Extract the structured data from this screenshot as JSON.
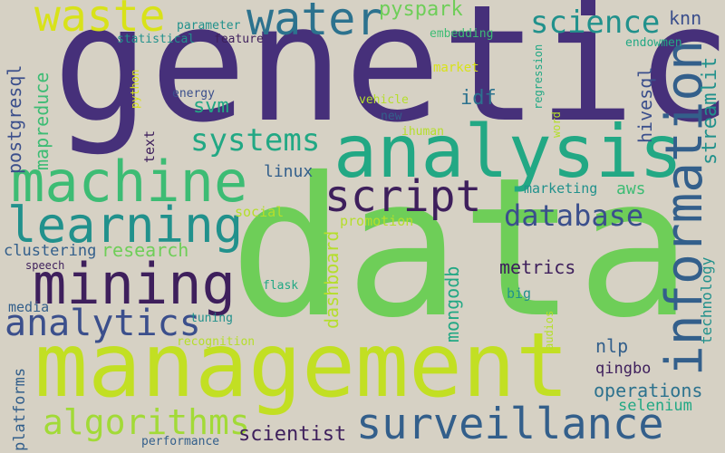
{
  "palette": {
    "background": "#d6d1c4",
    "deep_purple": "#46307a",
    "dark_purple": "#3e1f5c",
    "indigo": "#3b4f8c",
    "steel_blue": "#335f8b",
    "teal_blue": "#2c728e",
    "teal": "#21918c",
    "green_teal": "#22a884",
    "green": "#3dbc74",
    "light_green": "#6ece58",
    "lime": "#b5de2b",
    "yellow": "#d8e219"
  },
  "words": [
    {
      "text": "genetic",
      "color": "#46307a"
    },
    {
      "text": "data",
      "color": "#6ece58"
    },
    {
      "text": "management",
      "color": "#c2df23"
    },
    {
      "text": "analysis",
      "color": "#22a884"
    },
    {
      "text": "machine",
      "color": "#3dbc74"
    },
    {
      "text": "learning",
      "color": "#21918c"
    },
    {
      "text": "information",
      "color": "#335f8b"
    },
    {
      "text": "mining",
      "color": "#3e1f5c"
    },
    {
      "text": "surveillance",
      "color": "#335f8b"
    },
    {
      "text": "water",
      "color": "#2c728e"
    },
    {
      "text": "waste",
      "color": "#d8e219"
    },
    {
      "text": "script",
      "color": "#3e1f5c"
    },
    {
      "text": "algorithms",
      "color": "#a2da37"
    },
    {
      "text": "analytics",
      "color": "#3b4f8c"
    },
    {
      "text": "science",
      "color": "#21918c"
    },
    {
      "text": "systems",
      "color": "#22a884"
    },
    {
      "text": "database",
      "color": "#3b4f8c"
    },
    {
      "text": "pyspark",
      "color": "#6ece58"
    },
    {
      "text": "streamlit",
      "color": "#21918c"
    },
    {
      "text": "scientist",
      "color": "#3e1f5c"
    },
    {
      "text": "operations",
      "color": "#2c728e"
    },
    {
      "text": "research",
      "color": "#6ece58"
    },
    {
      "text": "postgresql",
      "color": "#3b4f8c"
    },
    {
      "text": "hivesql",
      "color": "#3b4f8c"
    },
    {
      "text": "mapreduce",
      "color": "#3dbc74"
    },
    {
      "text": "dashboard",
      "color": "#b5de2b"
    },
    {
      "text": "mongodb",
      "color": "#22a884"
    },
    {
      "text": "technology",
      "color": "#21918c"
    },
    {
      "text": "metrics",
      "color": "#3e1f5c"
    },
    {
      "text": "clustering",
      "color": "#335f8b"
    },
    {
      "text": "platforms",
      "color": "#335f8b"
    },
    {
      "text": "selenium",
      "color": "#22a884"
    },
    {
      "text": "qingbo",
      "color": "#3e1f5c"
    },
    {
      "text": "nlp",
      "color": "#335f8b"
    },
    {
      "text": "svm",
      "color": "#22a884"
    },
    {
      "text": "idf",
      "color": "#2c728e"
    },
    {
      "text": "knn",
      "color": "#3b4f8c"
    },
    {
      "text": "linux",
      "color": "#335f8b"
    },
    {
      "text": "aws",
      "color": "#3dbc74"
    },
    {
      "text": "media",
      "color": "#335f8b"
    },
    {
      "text": "promotion",
      "color": "#b5de2b"
    },
    {
      "text": "social",
      "color": "#b5de2b"
    },
    {
      "text": "marketing",
      "color": "#21918c"
    },
    {
      "text": "text",
      "color": "#3e1f5c"
    },
    {
      "text": "big",
      "color": "#21918c"
    },
    {
      "text": "market",
      "color": "#d8e219"
    },
    {
      "text": "energy",
      "color": "#3b4f8c"
    },
    {
      "text": "python",
      "color": "#d8e219"
    },
    {
      "text": "parameter",
      "color": "#21918c"
    },
    {
      "text": "statistical",
      "color": "#21918c"
    },
    {
      "text": "feature",
      "color": "#3e1f5c"
    },
    {
      "text": "embedding",
      "color": "#3dbc74"
    },
    {
      "text": "endowmen",
      "color": "#22a884"
    },
    {
      "text": "regression",
      "color": "#22a884"
    },
    {
      "text": "word",
      "color": "#b5de2b"
    },
    {
      "text": "vehicle",
      "color": "#b5de2b"
    },
    {
      "text": "new",
      "color": "#335f8b"
    },
    {
      "text": "ihuman",
      "color": "#b5de2b"
    },
    {
      "text": "flask",
      "color": "#22a884"
    },
    {
      "text": "tuning",
      "color": "#21918c"
    },
    {
      "text": "recognition",
      "color": "#b5de2b"
    },
    {
      "text": "audios",
      "color": "#b5de2b"
    },
    {
      "text": "speech",
      "color": "#3e1f5c"
    },
    {
      "text": "performance",
      "color": "#335f8b"
    }
  ]
}
